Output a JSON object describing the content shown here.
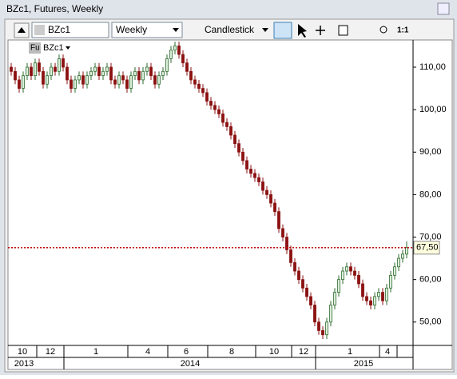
{
  "window": {
    "title": "BZc1, Futures, Weekly"
  },
  "toolbar": {
    "symbol": "BZc1",
    "interval": "Weekly",
    "style": "Candlestick",
    "zoom": "1:1"
  },
  "chart_data": {
    "type": "candlestick",
    "legend_prefix": "Fu",
    "symbol": "BZc1",
    "open": [
      110,
      109,
      107,
      105,
      108,
      110,
      108,
      111,
      109,
      106,
      108,
      110,
      109,
      112,
      110,
      107,
      105,
      107,
      108,
      106,
      108,
      109,
      110,
      108,
      109,
      110,
      107,
      106,
      108,
      107,
      105,
      108,
      109,
      107,
      109,
      110,
      108,
      106,
      108,
      109,
      112,
      114,
      115,
      113,
      111,
      109,
      107,
      106,
      105,
      104,
      102,
      101,
      100,
      99,
      97,
      96,
      94,
      92,
      90,
      88,
      86,
      85,
      84,
      83,
      81,
      80,
      78,
      76,
      72,
      70,
      67,
      64,
      62,
      60,
      58,
      56,
      54,
      50,
      48,
      47,
      50,
      54,
      57,
      60,
      62,
      63,
      62,
      61,
      59,
      56,
      55,
      54,
      56,
      57,
      55,
      58,
      61,
      63,
      65,
      66
    ],
    "high": [
      111,
      110,
      108,
      109,
      111,
      111,
      112,
      112,
      110,
      109,
      111,
      111,
      113,
      113,
      111,
      108,
      108,
      109,
      109,
      109,
      110,
      111,
      111,
      110,
      111,
      111,
      108,
      109,
      109,
      108,
      109,
      110,
      110,
      110,
      111,
      111,
      109,
      109,
      110,
      113,
      115,
      116,
      116,
      114,
      112,
      110,
      108,
      107,
      106,
      105,
      103,
      102,
      101,
      100,
      98,
      97,
      95,
      93,
      91,
      89,
      87,
      86,
      85,
      84,
      82,
      81,
      79,
      77,
      73,
      71,
      68,
      65,
      63,
      61,
      59,
      57,
      55,
      51,
      49,
      51,
      55,
      58,
      61,
      63,
      64,
      64,
      63,
      62,
      60,
      57,
      56,
      57,
      58,
      58,
      59,
      62,
      64,
      66,
      67,
      69
    ],
    "low": [
      108,
      106,
      104,
      104,
      107,
      107,
      107,
      108,
      105,
      105,
      107,
      108,
      108,
      109,
      106,
      104,
      104,
      106,
      105,
      105,
      107,
      108,
      107,
      107,
      108,
      106,
      105,
      105,
      106,
      104,
      104,
      107,
      106,
      106,
      108,
      107,
      105,
      105,
      107,
      108,
      111,
      113,
      112,
      110,
      108,
      106,
      105,
      104,
      103,
      101,
      100,
      99,
      98,
      96,
      95,
      93,
      91,
      89,
      87,
      85,
      84,
      83,
      82,
      80,
      79,
      77,
      75,
      71,
      69,
      66,
      63,
      61,
      59,
      57,
      55,
      53,
      49,
      47,
      46,
      46,
      49,
      53,
      56,
      59,
      61,
      61,
      60,
      58,
      55,
      54,
      53,
      53,
      55,
      54,
      54,
      57,
      60,
      62,
      64,
      65
    ],
    "close": [
      109,
      107,
      105,
      108,
      110,
      108,
      111,
      109,
      106,
      108,
      110,
      109,
      112,
      110,
      107,
      105,
      107,
      108,
      106,
      108,
      109,
      110,
      108,
      109,
      110,
      107,
      106,
      108,
      107,
      105,
      108,
      109,
      107,
      109,
      110,
      108,
      106,
      108,
      109,
      112,
      114,
      115,
      113,
      111,
      109,
      107,
      106,
      105,
      104,
      102,
      101,
      100,
      99,
      97,
      96,
      94,
      92,
      90,
      88,
      86,
      85,
      84,
      83,
      81,
      80,
      78,
      76,
      72,
      70,
      67,
      64,
      62,
      60,
      58,
      56,
      54,
      50,
      48,
      47,
      50,
      54,
      57,
      60,
      62,
      63,
      62,
      61,
      59,
      56,
      55,
      54,
      56,
      57,
      55,
      58,
      61,
      63,
      65,
      66,
      67.5
    ],
    "up_color": "#2f6b2f",
    "down_color": "#8b1010",
    "ylim": [
      44.5,
      116.4
    ],
    "yticks": [
      {
        "value": 50,
        "label": "50,00"
      },
      {
        "value": 60,
        "label": "60,00"
      },
      {
        "value": 70,
        "label": "70,00"
      },
      {
        "value": 80,
        "label": "80,00"
      },
      {
        "value": 90,
        "label": "90,00"
      },
      {
        "value": 100,
        "label": "100,00"
      },
      {
        "value": 110,
        "label": "110,00"
      }
    ],
    "last_price": 67.5,
    "last_price_label": "67,50",
    "last_price_color": "#c00000",
    "months": [
      "10",
      "12",
      "1",
      "4",
      "6",
      "8",
      "10",
      "12",
      "1",
      "4"
    ],
    "years": [
      "2013",
      "2014",
      "2015"
    ]
  }
}
